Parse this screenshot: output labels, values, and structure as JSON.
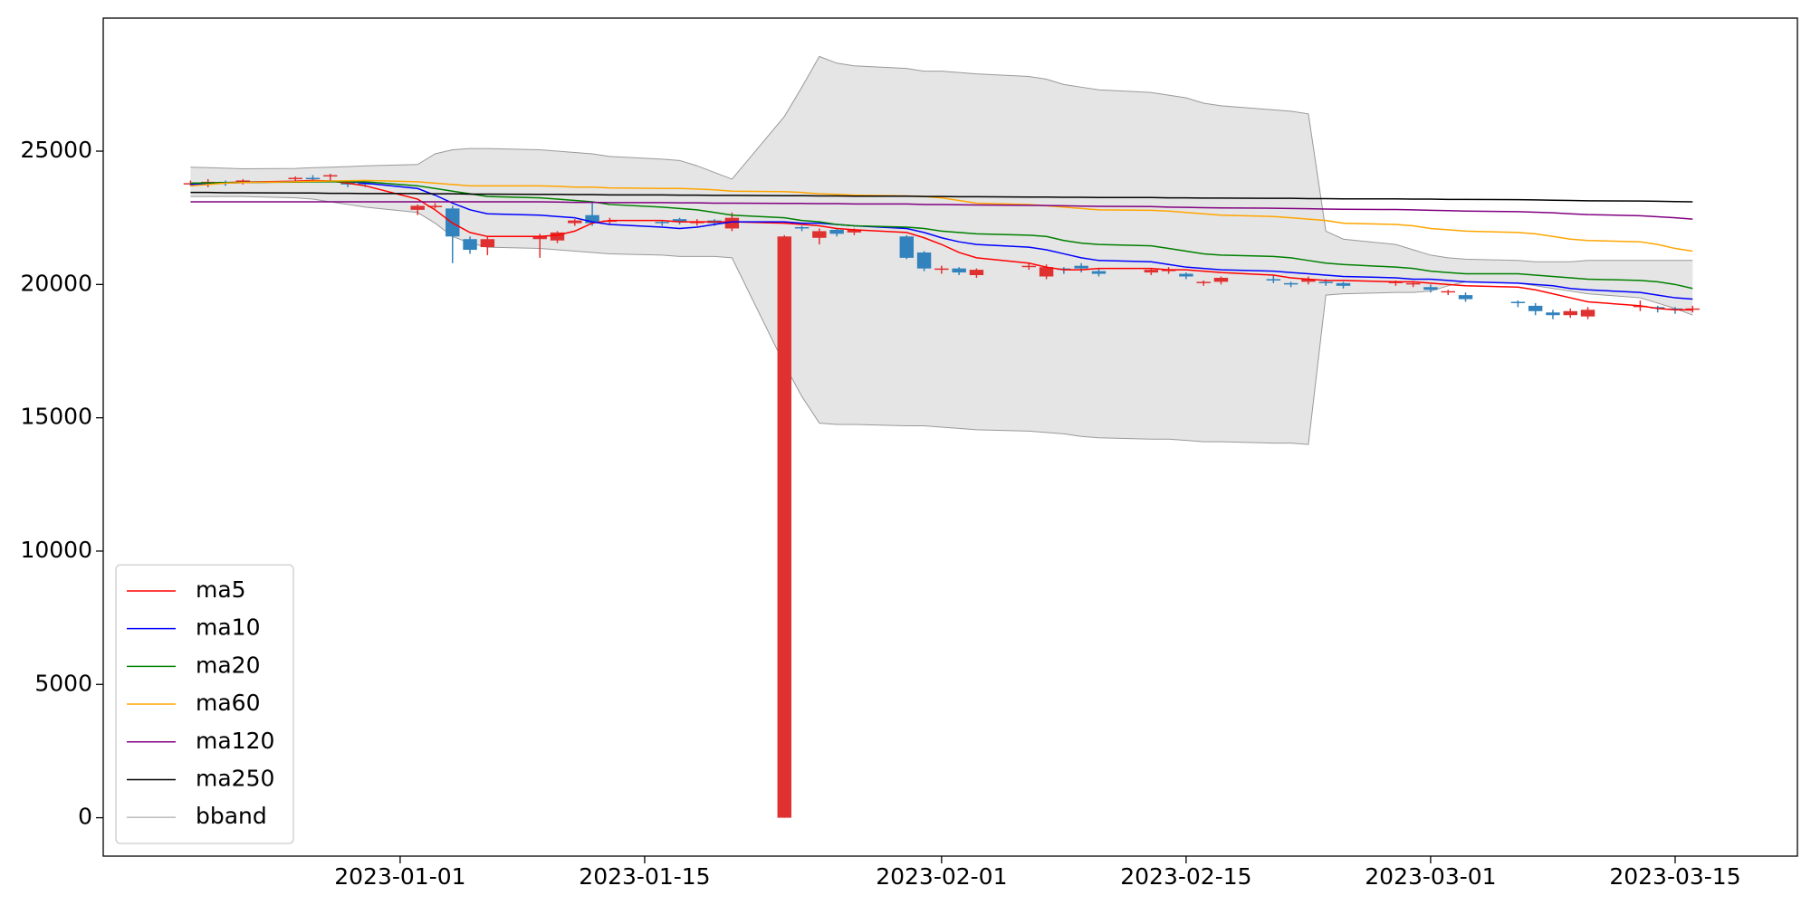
{
  "chart_data": {
    "type": "candlestick",
    "x": [
      "2022-12-20",
      "2022-12-21",
      "2022-12-22",
      "2022-12-23",
      "2022-12-26",
      "2022-12-27",
      "2022-12-28",
      "2022-12-29",
      "2022-12-30",
      "2023-01-02",
      "2023-01-03",
      "2023-01-04",
      "2023-01-05",
      "2023-01-06",
      "2023-01-09",
      "2023-01-10",
      "2023-01-11",
      "2023-01-12",
      "2023-01-13",
      "2023-01-16",
      "2023-01-17",
      "2023-01-18",
      "2023-01-19",
      "2023-01-20",
      "2023-01-23",
      "2023-01-24",
      "2023-01-25",
      "2023-01-26",
      "2023-01-27",
      "2023-01-30",
      "2023-01-31",
      "2023-02-01",
      "2023-02-02",
      "2023-02-03",
      "2023-02-06",
      "2023-02-07",
      "2023-02-08",
      "2023-02-09",
      "2023-02-10",
      "2023-02-13",
      "2023-02-14",
      "2023-02-15",
      "2023-02-16",
      "2023-02-17",
      "2023-02-20",
      "2023-02-21",
      "2023-02-22",
      "2023-02-23",
      "2023-02-24",
      "2023-02-27",
      "2023-02-28",
      "2023-03-01",
      "2023-03-02",
      "2023-03-03",
      "2023-03-06",
      "2023-03-07",
      "2023-03-08",
      "2023-03-09",
      "2023-03-10",
      "2023-03-13",
      "2023-03-14",
      "2023-03-15",
      "2023-03-16"
    ],
    "open": [
      23800,
      23750,
      23850,
      23850,
      23950,
      24000,
      24050,
      23850,
      23800,
      22800,
      22950,
      22850,
      21700,
      21400,
      21700,
      21650,
      22300,
      22600,
      22350,
      22350,
      22450,
      22300,
      22400,
      22100,
      0,
      22150,
      21750,
      22050,
      21950,
      21800,
      21200,
      20550,
      20600,
      20350,
      20650,
      20300,
      20600,
      20700,
      20500,
      20450,
      20500,
      20400,
      20050,
      20100,
      20200,
      20050,
      20100,
      20100,
      20050,
      20050,
      20000,
      19900,
      19750,
      19600,
      19350,
      19200,
      18950,
      18850,
      18800,
      19200,
      19150,
      19100,
      19100
    ],
    "high": [
      23900,
      23950,
      23900,
      23950,
      24050,
      24100,
      24150,
      23900,
      23850,
      23000,
      23050,
      22950,
      21800,
      21800,
      21900,
      22000,
      22450,
      23100,
      22500,
      22400,
      22500,
      22450,
      22450,
      22700,
      21850,
      22200,
      22100,
      22100,
      22100,
      21850,
      21250,
      20700,
      20650,
      20600,
      20800,
      20750,
      20650,
      20800,
      20600,
      20600,
      20650,
      20450,
      20150,
      20300,
      20350,
      20100,
      20300,
      20200,
      20100,
      20150,
      20100,
      20000,
      19800,
      19700,
      19400,
      19300,
      19050,
      19100,
      19150,
      19400,
      19200,
      19150,
      19200
    ],
    "low": [
      23700,
      23650,
      23700,
      23750,
      23850,
      23850,
      23900,
      23650,
      23650,
      22600,
      22850,
      20800,
      21150,
      21100,
      21000,
      21550,
      22200,
      22200,
      22250,
      22200,
      22250,
      22200,
      22200,
      22000,
      0,
      22000,
      21500,
      21800,
      21850,
      20950,
      20500,
      20400,
      20350,
      20250,
      20550,
      20200,
      20400,
      20450,
      20300,
      20350,
      20400,
      20200,
      19950,
      20000,
      20050,
      19900,
      20000,
      19950,
      19850,
      19950,
      19900,
      19700,
      19600,
      19350,
      19150,
      18850,
      18700,
      18750,
      18700,
      19000,
      18950,
      18900,
      18950
    ],
    "close": [
      23800,
      23850,
      23800,
      23900,
      24000,
      23950,
      24100,
      23750,
      23750,
      22950,
      22950,
      21800,
      21300,
      21700,
      21800,
      21950,
      22400,
      22300,
      22400,
      22300,
      22350,
      22350,
      22300,
      22500,
      21800,
      22100,
      22000,
      21900,
      22050,
      21000,
      20600,
      20600,
      20450,
      20550,
      20700,
      20650,
      20550,
      20600,
      20400,
      20550,
      20550,
      20300,
      20100,
      20250,
      20150,
      20000,
      20200,
      20050,
      19950,
      20100,
      20050,
      19800,
      19750,
      19450,
      19300,
      19000,
      18850,
      19000,
      19050,
      19200,
      19100,
      19050,
      19100
    ],
    "up_color": "#e03131",
    "down_color": "#3182bd",
    "series": [
      {
        "name": "ma5",
        "color": "#ff0000",
        "values": [
          23800,
          23810,
          23820,
          23840,
          23870,
          23900,
          23880,
          23800,
          23700,
          23200,
          22800,
          22300,
          21950,
          21800,
          21800,
          21850,
          22000,
          22300,
          22400,
          22400,
          22350,
          22350,
          22350,
          22350,
          22300,
          22250,
          22200,
          22100,
          22050,
          21950,
          21750,
          21500,
          21200,
          21000,
          20800,
          20650,
          20550,
          20550,
          20600,
          20600,
          20550,
          20550,
          20500,
          20450,
          20350,
          20250,
          20200,
          20150,
          20150,
          20100,
          20100,
          20050,
          20000,
          19950,
          19900,
          19800,
          19650,
          19500,
          19350,
          19200,
          19100,
          19050,
          19050
        ]
      },
      {
        "name": "ma10",
        "color": "#0000ff",
        "values": [
          23750,
          23780,
          23800,
          23820,
          23850,
          23860,
          23880,
          23860,
          23800,
          23600,
          23350,
          23050,
          22800,
          22650,
          22600,
          22550,
          22500,
          22350,
          22250,
          22150,
          22100,
          22150,
          22250,
          22350,
          22350,
          22300,
          22300,
          22250,
          22200,
          22100,
          21950,
          21750,
          21600,
          21500,
          21400,
          21300,
          21150,
          21000,
          20900,
          20850,
          20750,
          20650,
          20600,
          20550,
          20500,
          20450,
          20400,
          20350,
          20300,
          20250,
          20200,
          20200,
          20150,
          20100,
          20050,
          20000,
          19950,
          19850,
          19800,
          19700,
          19600,
          19500,
          19450
        ]
      },
      {
        "name": "ma20",
        "color": "#008000",
        "values": [
          23800,
          23810,
          23820,
          23830,
          23840,
          23850,
          23850,
          23850,
          23850,
          23700,
          23600,
          23500,
          23400,
          23300,
          23250,
          23200,
          23150,
          23100,
          23000,
          22900,
          22850,
          22800,
          22700,
          22600,
          22500,
          22400,
          22350,
          22250,
          22200,
          22150,
          22100,
          22000,
          21950,
          21900,
          21850,
          21800,
          21650,
          21550,
          21500,
          21450,
          21350,
          21250,
          21150,
          21100,
          21050,
          21000,
          20900,
          20800,
          20750,
          20650,
          20600,
          20500,
          20450,
          20400,
          20400,
          20350,
          20300,
          20250,
          20200,
          20150,
          20100,
          20000,
          19850
        ]
      },
      {
        "name": "ma60",
        "color": "#ffa500",
        "values": [
          23700,
          23750,
          23800,
          23820,
          23850,
          23870,
          23880,
          23890,
          23900,
          23850,
          23800,
          23750,
          23700,
          23700,
          23700,
          23680,
          23650,
          23650,
          23620,
          23600,
          23600,
          23580,
          23550,
          23500,
          23480,
          23450,
          23400,
          23380,
          23350,
          23320,
          23300,
          23250,
          23150,
          23050,
          23000,
          22950,
          22900,
          22850,
          22800,
          22780,
          22750,
          22700,
          22650,
          22600,
          22550,
          22500,
          22450,
          22400,
          22300,
          22250,
          22200,
          22100,
          22050,
          22000,
          21950,
          21900,
          21800,
          21700,
          21650,
          21600,
          21500,
          21350,
          21250
        ]
      },
      {
        "name": "ma120",
        "color": "#800080",
        "values": [
          23100,
          23100,
          23100,
          23100,
          23100,
          23100,
          23100,
          23100,
          23100,
          23100,
          23100,
          23100,
          23100,
          23100,
          23100,
          23090,
          23080,
          23080,
          23070,
          23070,
          23060,
          23060,
          23050,
          23050,
          23040,
          23040,
          23030,
          23030,
          23020,
          23020,
          23000,
          23000,
          22990,
          22980,
          22970,
          22960,
          22950,
          22940,
          22930,
          22920,
          22900,
          22890,
          22880,
          22870,
          22860,
          22850,
          22840,
          22830,
          22820,
          22810,
          22800,
          22780,
          22770,
          22750,
          22730,
          22710,
          22690,
          22650,
          22620,
          22580,
          22540,
          22500,
          22450
        ]
      },
      {
        "name": "ma250",
        "color": "#000000",
        "values": [
          23450,
          23450,
          23440,
          23440,
          23430,
          23430,
          23420,
          23420,
          23410,
          23410,
          23400,
          23400,
          23390,
          23390,
          23380,
          23380,
          23370,
          23370,
          23360,
          23360,
          23350,
          23350,
          23340,
          23340,
          23330,
          23330,
          23320,
          23320,
          23310,
          23310,
          23300,
          23300,
          23290,
          23290,
          23280,
          23280,
          23270,
          23270,
          23260,
          23260,
          23250,
          23250,
          23240,
          23240,
          23230,
          23230,
          23220,
          23220,
          23210,
          23210,
          23200,
          23200,
          23190,
          23190,
          23180,
          23170,
          23160,
          23150,
          23140,
          23130,
          23120,
          23110,
          23100
        ]
      }
    ],
    "band": {
      "name": "bband",
      "color": "#999999",
      "fill": "#e5e5e5",
      "upper": [
        24400,
        24380,
        24360,
        24340,
        24350,
        24380,
        24400,
        24420,
        24450,
        24500,
        24900,
        25050,
        25100,
        25100,
        25050,
        25000,
        24950,
        24900,
        24800,
        24700,
        24650,
        24450,
        24200,
        23950,
        26300,
        27400,
        28550,
        28300,
        28200,
        28100,
        28000,
        28000,
        27950,
        27900,
        27800,
        27700,
        27500,
        27400,
        27300,
        27200,
        27100,
        27000,
        26800,
        26700,
        26550,
        26500,
        26400,
        22000,
        21700,
        21500,
        21300,
        21100,
        21000,
        20950,
        20900,
        20850,
        20850,
        20850,
        20900,
        20900,
        20900,
        20900,
        20900
      ],
      "lower": [
        23300,
        23300,
        23300,
        23300,
        23250,
        23200,
        23100,
        23000,
        22900,
        22700,
        22300,
        21800,
        21550,
        21400,
        21350,
        21300,
        21250,
        21200,
        21150,
        21100,
        21050,
        21050,
        21050,
        21000,
        17000,
        15800,
        14800,
        14750,
        14750,
        14700,
        14700,
        14650,
        14600,
        14550,
        14500,
        14450,
        14400,
        14300,
        14250,
        14200,
        14200,
        14150,
        14100,
        14100,
        14050,
        14050,
        14000,
        19600,
        19650,
        19700,
        19700,
        19750,
        19950,
        20100,
        20050,
        19950,
        19850,
        19750,
        19650,
        19500,
        19300,
        19100,
        18850
      ]
    },
    "xlim": [
      "2022-12-15",
      "2023-03-22"
    ],
    "xticks": [
      "2023-01-01",
      "2023-01-15",
      "2023-02-01",
      "2023-02-15",
      "2023-03-01",
      "2023-03-15"
    ],
    "ylim": [
      -1440,
      29990
    ],
    "yticks": [
      0,
      5000,
      10000,
      15000,
      20000,
      25000
    ],
    "legend": "lower left"
  }
}
